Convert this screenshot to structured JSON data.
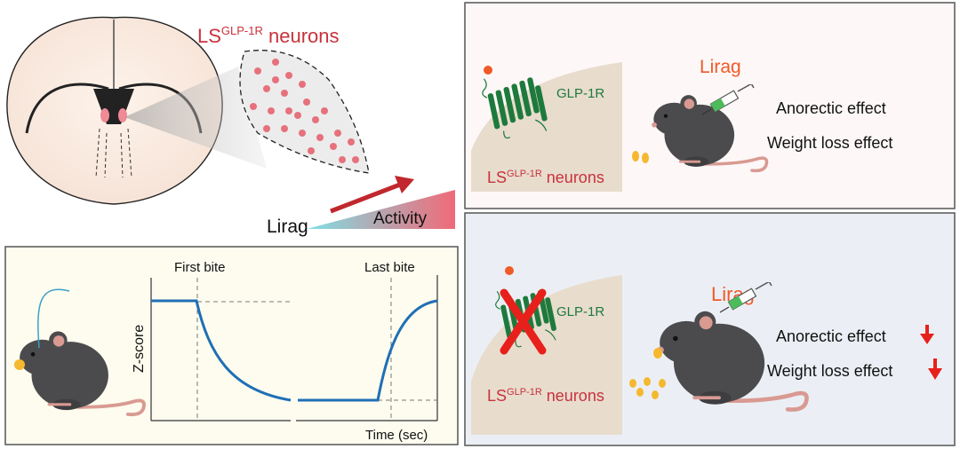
{
  "brain": {
    "title_main": "LS",
    "title_sup": "GLP-1R",
    "title_rest": " neurons"
  },
  "activation": {
    "drug": "Lirag",
    "activity_label": "Activity"
  },
  "photometry_panel": {
    "first_bite": "First bite",
    "last_bite": "Last bite",
    "ylabel": "Z-score",
    "xlabel": "Time (sec)"
  },
  "intact_panel": {
    "drug": "Lirag",
    "receptor": "GLP-1R",
    "neurons_main": "LS",
    "neurons_sup": "GLP-1R",
    "neurons_rest": " neurons",
    "effect_1": "Anorectic effect",
    "effect_2": "Weight loss effect"
  },
  "knockout_panel": {
    "drug": "Lirag",
    "receptor": "GLP-1R",
    "neurons_main": "LS",
    "neurons_sup": "GLP-1R",
    "neurons_rest": " neurons",
    "effect_1": "Anorectic effect",
    "effect_2": "Weight loss effect",
    "effect_direction": "decreased"
  },
  "colors": {
    "neuron_red": "#c8323c",
    "lirag_orange": "#f05a28",
    "receptor_green": "#1e7a3c",
    "trace_blue": "#1f6fb5",
    "arrow_red": "#c0282d",
    "down_arrow": "#e8201c",
    "top_panel_bg": "#fdf7f7",
    "bottom_panel_bg": "#ebeff5",
    "photometry_bg": "#fdfcef",
    "tissue_tan": "#e8dccd"
  }
}
